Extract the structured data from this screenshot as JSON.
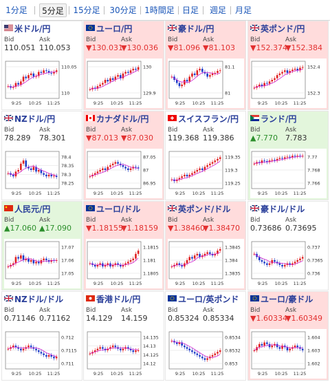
{
  "tabs": [
    "1分足",
    "5分足",
    "15分足",
    "30分足",
    "1時間足",
    "日足",
    "週足",
    "月足"
  ],
  "active_tab": 1,
  "labels": {
    "bid": "Bid",
    "ask": "Ask"
  },
  "colors": {
    "down_bg": "#ffdcdc",
    "up_bg": "#e3f6dc",
    "bull": "#e02020",
    "bear": "#1e3cc8",
    "ma": "#d020d0"
  },
  "cells": [
    {
      "pair": "米ドル/円",
      "flag": "us",
      "trend": "flat",
      "bid": "110.051",
      "ask": "110.053",
      "yticks": [
        "110.05",
        "110"
      ],
      "xticks": [
        "9:25",
        "10:25",
        "11:25"
      ],
      "path": [
        0.3,
        0.25,
        0.28,
        0.4,
        0.35,
        0.45,
        0.6,
        0.55,
        0.65,
        0.7,
        0.6,
        0.62,
        0.75,
        0.72,
        0.8,
        0.78,
        0.72,
        0.7,
        0.75,
        0.8
      ]
    },
    {
      "pair": "ユーロ/円",
      "flag": "eu",
      "trend": "down",
      "bid": "▼130.031",
      "ask": "▼130.036",
      "yticks": [
        "130",
        "129.9"
      ],
      "xticks": [
        "9:25",
        "10:25",
        "11:25"
      ],
      "path": [
        0.2,
        0.25,
        0.22,
        0.3,
        0.35,
        0.4,
        0.5,
        0.45,
        0.55,
        0.5,
        0.6,
        0.65,
        0.55,
        0.7,
        0.75,
        0.72,
        0.8,
        0.85,
        0.82,
        0.9
      ]
    },
    {
      "pair": "豪ドル/円",
      "flag": "au",
      "trend": "down",
      "bid": "▼81.096",
      "ask": "▼81.103",
      "yticks": [
        "81.1",
        "81"
      ],
      "xticks": [
        "9:25",
        "10:25",
        "11:25"
      ],
      "path": [
        0.6,
        0.5,
        0.4,
        0.3,
        0.35,
        0.5,
        0.45,
        0.6,
        0.7,
        0.65,
        0.8,
        0.85,
        0.75,
        0.7,
        0.6,
        0.65,
        0.7,
        0.72,
        0.78,
        0.8
      ]
    },
    {
      "pair": "英ポンド/円",
      "flag": "uk",
      "trend": "down",
      "bid": "▼152.374",
      "ask": "▼152.384",
      "yticks": [
        "152.4",
        "152.3"
      ],
      "xticks": [
        "9:25",
        "10:25",
        "11:25"
      ],
      "path": [
        0.25,
        0.3,
        0.35,
        0.3,
        0.4,
        0.38,
        0.45,
        0.5,
        0.55,
        0.65,
        0.7,
        0.75,
        0.8,
        0.72,
        0.78,
        0.82,
        0.85,
        0.8,
        0.88,
        0.9
      ]
    },
    {
      "pair": "NZドル/円",
      "flag": "nz",
      "trend": "flat",
      "bid": "78.289",
      "ask": "78.301",
      "yticks": [
        "78.4",
        "78.35",
        "78.3",
        "78.25"
      ],
      "xticks": [
        "9:25",
        "10:25",
        "11:25"
      ],
      "path": [
        0.4,
        0.35,
        0.3,
        0.45,
        0.5,
        0.7,
        0.8,
        0.6,
        0.55,
        0.5,
        0.6,
        0.45,
        0.5,
        0.4,
        0.35,
        0.3,
        0.35,
        0.3,
        0.32,
        0.28
      ]
    },
    {
      "pair": "カナダドル/円",
      "flag": "ca",
      "trend": "down",
      "bid": "▼87.013",
      "ask": "▼87.030",
      "yticks": [
        "87.05",
        "87",
        "86.95"
      ],
      "xticks": [
        "9:25",
        "10:25",
        "11:25"
      ],
      "path": [
        0.3,
        0.35,
        0.4,
        0.45,
        0.5,
        0.55,
        0.5,
        0.6,
        0.65,
        0.7,
        0.75,
        0.7,
        0.65,
        0.6,
        0.55,
        0.5,
        0.55,
        0.6,
        0.58,
        0.55
      ]
    },
    {
      "pair": "スイスフラン/円",
      "flag": "ch",
      "trend": "flat",
      "bid": "119.368",
      "ask": "119.386",
      "yticks": [
        "119.35",
        "119.3",
        "119.25"
      ],
      "xticks": [
        "9:25",
        "10:25",
        "11:25"
      ],
      "path": [
        0.2,
        0.15,
        0.2,
        0.25,
        0.3,
        0.35,
        0.3,
        0.35,
        0.4,
        0.45,
        0.5,
        0.55,
        0.5,
        0.6,
        0.65,
        0.7,
        0.75,
        0.8,
        0.85,
        0.9
      ]
    },
    {
      "pair": "ランド/円",
      "flag": "za",
      "trend": "up",
      "bid": "▲7.770",
      "ask": "7.783",
      "yticks": [
        "7.77",
        "7.768",
        "7.766"
      ],
      "xticks": [
        "9:25",
        "10:25",
        "11:25"
      ],
      "path": [
        0.7,
        0.75,
        0.72,
        0.8,
        0.78,
        0.75,
        0.8,
        0.82,
        0.8,
        0.85,
        0.88,
        0.86,
        0.9,
        0.92,
        0.9,
        0.95,
        0.93,
        0.95,
        0.94,
        0.95
      ]
    },
    {
      "pair": "人民元/円",
      "flag": "cn",
      "trend": "up",
      "bid": "▲17.060",
      "ask": "▲17.090",
      "yticks": [
        "17.07",
        "17.06",
        "17.05"
      ],
      "xticks": [
        "9:25",
        "10:25",
        "11:25"
      ],
      "path": [
        0.3,
        0.35,
        0.4,
        0.6,
        0.55,
        0.65,
        0.5,
        0.55,
        0.45,
        0.5,
        0.4,
        0.45,
        0.4,
        0.5,
        0.55,
        0.5,
        0.45,
        0.5,
        0.48,
        0.5
      ]
    },
    {
      "pair": "ユーロ/ドル",
      "flag": "eu",
      "trend": "down",
      "bid": "▼1.18155",
      "ask": "▼1.18159",
      "yticks": [
        "1.1815",
        "1.181",
        "1.1805"
      ],
      "xticks": [
        "9:25",
        "10:25",
        "11:25"
      ],
      "path": [
        0.4,
        0.35,
        0.3,
        0.35,
        0.4,
        0.3,
        0.35,
        0.4,
        0.3,
        0.35,
        0.4,
        0.35,
        0.3,
        0.35,
        0.4,
        0.45,
        0.5,
        0.55,
        0.7,
        0.8
      ]
    },
    {
      "pair": "英ポンド/ドル",
      "flag": "uk",
      "trend": "down",
      "bid": "▼1.38460",
      "ask": "▼1.38470",
      "yticks": [
        "1.3845",
        "1.384",
        "1.3835"
      ],
      "xticks": [
        "9:25",
        "10:25",
        "11:25"
      ],
      "path": [
        0.3,
        0.35,
        0.4,
        0.35,
        0.3,
        0.4,
        0.5,
        0.6,
        0.55,
        0.65,
        0.7,
        0.6,
        0.65,
        0.7,
        0.75,
        0.7,
        0.65,
        0.7,
        0.8,
        0.85
      ]
    },
    {
      "pair": "豪ドル/ドル",
      "flag": "au",
      "trend": "flat",
      "bid": "0.73686",
      "ask": "0.73695",
      "yticks": [
        "0.737",
        "0.7365",
        "0.736"
      ],
      "xticks": [
        "9:25",
        "10:25",
        "11:25"
      ],
      "path": [
        0.7,
        0.6,
        0.5,
        0.45,
        0.4,
        0.35,
        0.4,
        0.5,
        0.45,
        0.4,
        0.35,
        0.3,
        0.35,
        0.4,
        0.35,
        0.4,
        0.45,
        0.5,
        0.55,
        0.6
      ]
    },
    {
      "pair": "NZドル/ドル",
      "flag": "nz",
      "trend": "flat",
      "bid": "0.71146",
      "ask": "0.71162",
      "yticks": [
        "0.712",
        "0.7115",
        "0.711"
      ],
      "xticks": [
        "9:25",
        "10:25",
        "11:25"
      ],
      "path": [
        0.55,
        0.6,
        0.65,
        0.6,
        0.55,
        0.5,
        0.55,
        0.6,
        0.65,
        0.6,
        0.55,
        0.5,
        0.45,
        0.4,
        0.35,
        0.3,
        0.35,
        0.3,
        0.25,
        0.3
      ]
    },
    {
      "pair": "香港ドル/円",
      "flag": "hk",
      "trend": "flat",
      "bid": "14.129",
      "ask": "14.159",
      "yticks": [
        "14.135",
        "14.13",
        "14.125",
        "14.12"
      ],
      "xticks": [
        "9:25",
        "10:25",
        "11:25"
      ],
      "path": [
        0.4,
        0.45,
        0.5,
        0.55,
        0.6,
        0.55,
        0.5,
        0.55,
        0.6,
        0.65,
        0.6,
        0.55,
        0.5,
        0.55,
        0.6,
        0.55,
        0.5,
        0.45,
        0.5,
        0.5
      ]
    },
    {
      "pair": "ユーロ/英ポンド",
      "flag": "eu",
      "trend": "flat",
      "bid": "0.85324",
      "ask": "0.85334",
      "yticks": [
        "0.8534",
        "0.8532",
        "0.853"
      ],
      "xticks": [
        "9:25",
        "10:25",
        "11:25"
      ],
      "path": [
        0.8,
        0.75,
        0.7,
        0.75,
        0.65,
        0.6,
        0.55,
        0.5,
        0.45,
        0.4,
        0.35,
        0.3,
        0.25,
        0.2,
        0.25,
        0.3,
        0.35,
        0.4,
        0.45,
        0.5
      ]
    },
    {
      "pair": "ユーロ/豪ドル",
      "flag": "eu",
      "trend": "down",
      "bid": "▼1.60334",
      "ask": "▼1.60349",
      "yticks": [
        "1.604",
        "1.603",
        "1.602"
      ],
      "xticks": [
        "9:25",
        "10:25",
        "11:25"
      ],
      "path": [
        0.5,
        0.6,
        0.7,
        0.65,
        0.75,
        0.7,
        0.6,
        0.65,
        0.7,
        0.6,
        0.55,
        0.65,
        0.6,
        0.5,
        0.55,
        0.6,
        0.65,
        0.6,
        0.55,
        0.5
      ]
    }
  ]
}
